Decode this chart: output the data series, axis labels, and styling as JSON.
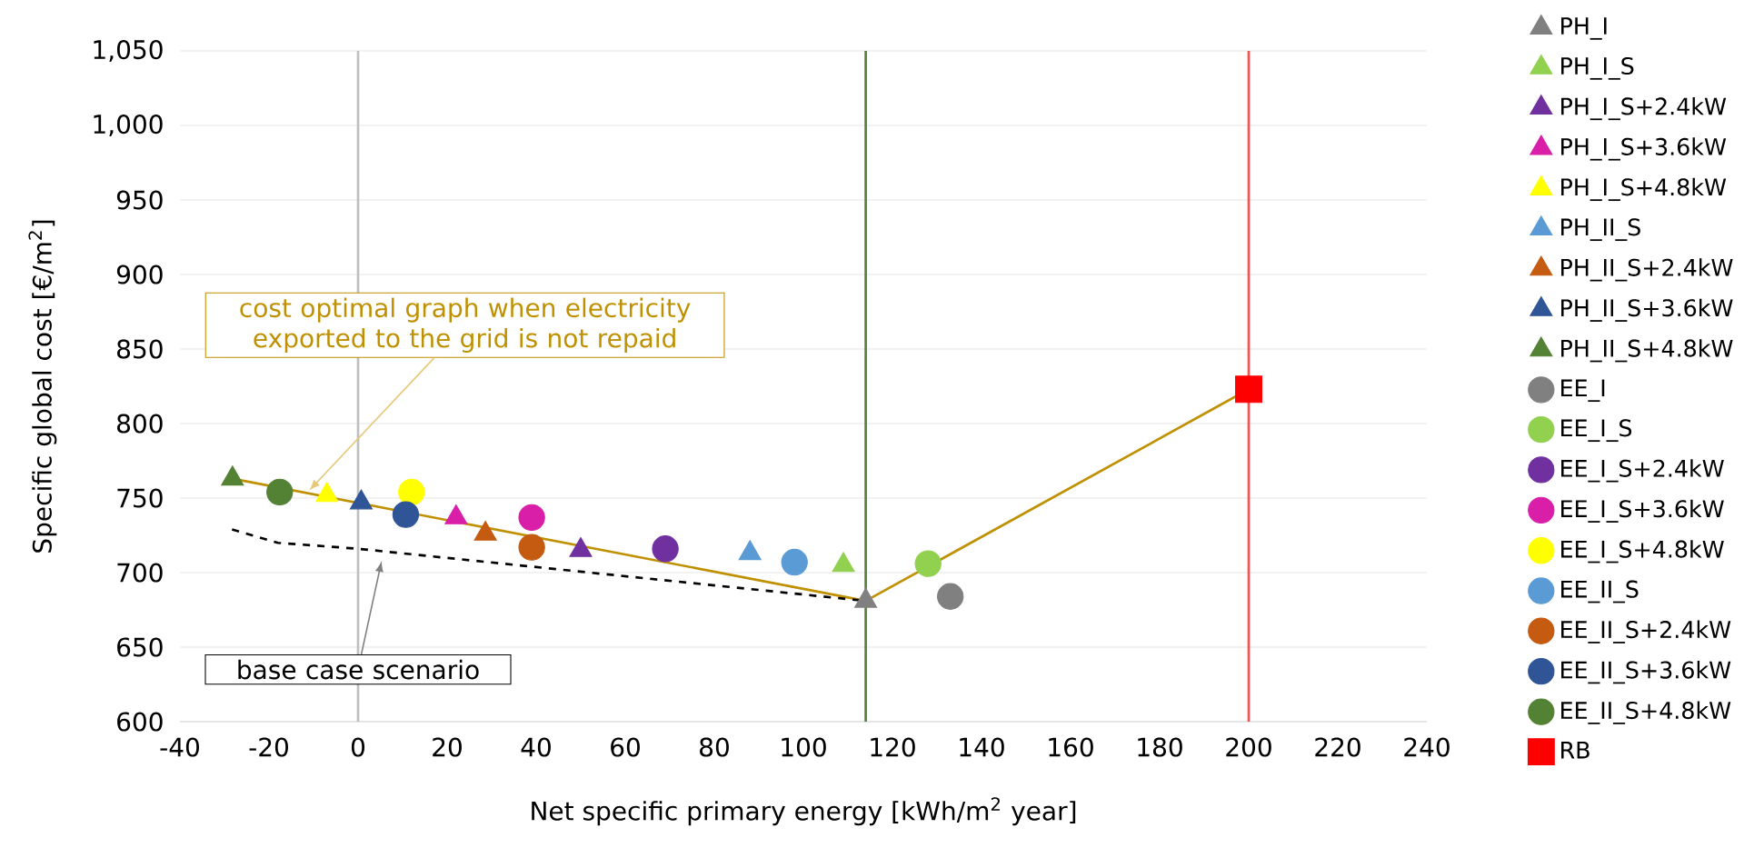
{
  "chart_data": {
    "type": "scatter",
    "xlabel": "Net specific primary energy [kWh/m$^{2}$ year]",
    "ylabel": "Specific global cost [€/m$^{2}$]",
    "xlim": [
      -40,
      240
    ],
    "xticks": [
      -40,
      -20,
      0,
      20,
      40,
      60,
      80,
      100,
      120,
      140,
      160,
      180,
      200,
      220,
      240
    ],
    "ylim": [
      600,
      1050
    ],
    "yticks": [
      600,
      650,
      700,
      750,
      800,
      850,
      900,
      950,
      {
        "value": 1000,
        "label": "1,000"
      },
      {
        "value": 1050,
        "label": "1,050"
      }
    ],
    "grid": "y",
    "legend": "right",
    "series": [
      {
        "name": "PH_I",
        "marker": "triangle",
        "color": "#808080",
        "x": [
          114
        ],
        "values": [
          681
        ]
      },
      {
        "name": "PH_I_S",
        "marker": "triangle",
        "color": "#92d050",
        "x": [
          109
        ],
        "values": [
          705
        ]
      },
      {
        "name": "PH_I_S+2.4kW",
        "marker": "triangle",
        "color": "#7030a0",
        "x": [
          50
        ],
        "values": [
          715
        ]
      },
      {
        "name": "PH_I_S+3.6kW",
        "marker": "triangle",
        "color": "#d91ea8",
        "x": [
          22
        ],
        "values": [
          737
        ]
      },
      {
        "name": "PH_I_S+4.8kW",
        "marker": "triangle",
        "color": "#ffff00",
        "x": [
          -7
        ],
        "values": [
          752
        ]
      },
      {
        "name": "PH_II_S",
        "marker": "triangle",
        "color": "#5b9bd5",
        "x": [
          88
        ],
        "values": [
          713
        ]
      },
      {
        "name": "PH_II_S+2.4kW",
        "marker": "triangle",
        "color": "#c55a11",
        "x": [
          28.6
        ],
        "values": [
          726
        ]
      },
      {
        "name": "PH_II_S+3.6kW",
        "marker": "triangle",
        "color": "#2f5597",
        "x": [
          0.7
        ],
        "values": [
          747
        ]
      },
      {
        "name": "PH_II_S+4.8kW",
        "marker": "triangle",
        "color": "#548235",
        "x": [
          -28.2
        ],
        "values": [
          763
        ]
      },
      {
        "name": "EE_I",
        "marker": "circle",
        "color": "#808080",
        "x": [
          133
        ],
        "values": [
          684
        ]
      },
      {
        "name": "EE_I_S",
        "marker": "circle",
        "color": "#92d050",
        "x": [
          128
        ],
        "values": [
          706
        ]
      },
      {
        "name": "EE_I_S+2.4kW",
        "marker": "circle",
        "color": "#7030a0",
        "x": [
          69
        ],
        "values": [
          716
        ]
      },
      {
        "name": "EE_I_S+3.6kW",
        "marker": "circle",
        "color": "#d91ea8",
        "x": [
          39
        ],
        "values": [
          737
        ]
      },
      {
        "name": "EE_I_S+4.8kW",
        "marker": "circle",
        "color": "#ffff00",
        "x": [
          12
        ],
        "values": [
          754
        ]
      },
      {
        "name": "EE_II_S",
        "marker": "circle",
        "color": "#5b9bd5",
        "x": [
          98
        ],
        "values": [
          707
        ]
      },
      {
        "name": "EE_II_S+2.4kW",
        "marker": "circle",
        "color": "#c55a11",
        "x": [
          39
        ],
        "values": [
          717
        ]
      },
      {
        "name": "EE_II_S+3.6kW",
        "marker": "circle",
        "color": "#2f5597",
        "x": [
          10.7
        ],
        "values": [
          739
        ]
      },
      {
        "name": "EE_II_S+4.8kW",
        "marker": "circle",
        "color": "#548235",
        "x": [
          -17.6
        ],
        "values": [
          754
        ]
      },
      {
        "name": "RB",
        "marker": "square",
        "color": "#ff0000",
        "x": [
          200
        ],
        "values": [
          823
        ]
      },
      {
        "type": "line",
        "marker": "none",
        "line_style": "solid",
        "color": "#bf9000",
        "x": [
          -28.2,
          114,
          200
        ],
        "values": [
          763,
          681,
          823
        ]
      },
      {
        "type": "line",
        "marker": "none",
        "line_style": "dashed",
        "color": "#000000",
        "x": [
          -28.3,
          -18,
          0,
          114
        ],
        "values": [
          729,
          720,
          716,
          681
        ]
      }
    ],
    "ref_lines": [
      {
        "axis": "x",
        "value": 0,
        "color": "#bfbfbf"
      },
      {
        "axis": "x",
        "value": 114,
        "color": "#548235"
      },
      {
        "axis": "x",
        "value": 200,
        "color": "#ff5050"
      }
    ],
    "annotations": [
      {
        "text": "cost optimal graph when electricity exported to the grid is not repaid",
        "x": -11,
        "y": 755
      },
      {
        "text": "base case scenario",
        "x": 5.3,
        "y": 708
      }
    ]
  }
}
